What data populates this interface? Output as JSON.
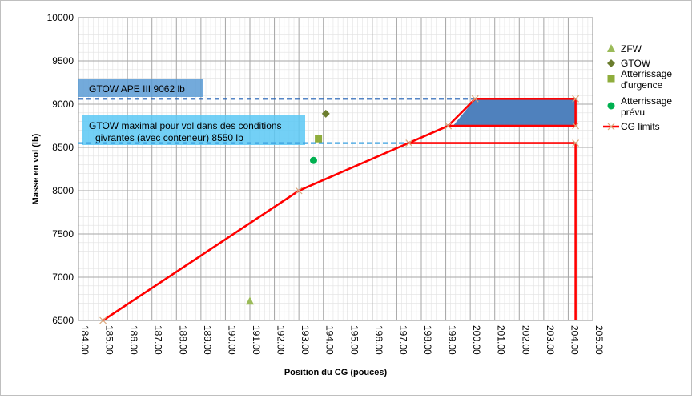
{
  "chart_data": {
    "type": "scatter",
    "title": "",
    "xlabel": "Position du CG (pouces)",
    "ylabel": "Masse en vol (lb)",
    "xlim": [
      184,
      205
    ],
    "ylim": [
      6500,
      10000
    ],
    "x_ticks": [
      "184.00",
      "185.00",
      "186.00",
      "187.00",
      "188.00",
      "189.00",
      "190.00",
      "191.00",
      "192.00",
      "193.00",
      "194.00",
      "195.00",
      "196.00",
      "197.00",
      "198.00",
      "199.00",
      "200.00",
      "201.00",
      "202.00",
      "203.00",
      "204.00",
      "205.00"
    ],
    "y_ticks": [
      "6500",
      "7000",
      "7500",
      "8000",
      "8500",
      "9000",
      "9500",
      "10000"
    ],
    "grid": true,
    "legend_position": "right",
    "series": [
      {
        "name": "ZFW",
        "marker": "triangle",
        "color": "#9bbb59",
        "points": [
          {
            "x": 191.0,
            "y": 6720
          }
        ]
      },
      {
        "name": "GTOW",
        "marker": "diamond",
        "color": "#6b7d2e",
        "points": [
          {
            "x": 194.1,
            "y": 8890
          }
        ]
      },
      {
        "name": "Atterrissage d'urgence",
        "marker": "square",
        "color": "#8fad3c",
        "points": [
          {
            "x": 193.8,
            "y": 8600
          }
        ]
      },
      {
        "name": "Atterrissage prévu",
        "marker": "circle",
        "color": "#00b050",
        "points": [
          {
            "x": 193.6,
            "y": 8350
          }
        ]
      },
      {
        "name": "CG limits",
        "marker": "line",
        "color": "#ff0000",
        "points": [
          {
            "x": 185.0,
            "y": 6500
          },
          {
            "x": 193.0,
            "y": 8000
          },
          {
            "x": 199.1,
            "y": 8750
          },
          {
            "x": 200.2,
            "y": 9062
          },
          {
            "x": 204.3,
            "y": 9062
          },
          {
            "x": 204.3,
            "y": 8750
          },
          {
            "x": 199.1,
            "y": 8750
          }
        ]
      }
    ],
    "cg_aft_limit": {
      "x": 204.3,
      "y_from": 6500,
      "y_to": 8550
    },
    "cg_8550_line": {
      "x_from": 197.5,
      "x_to": 204.3,
      "y": 8550
    },
    "shaded_envelope": [
      {
        "x": 199.3,
        "y": 8750
      },
      {
        "x": 200.2,
        "y": 9062
      },
      {
        "x": 204.3,
        "y": 9062
      },
      {
        "x": 204.3,
        "y": 8750
      }
    ],
    "reference_lines": [
      {
        "y": 9062,
        "label": "GTOW APE III 9062 lb",
        "color": "#1f5fb4",
        "x_from": 184,
        "x_to": 204.3
      },
      {
        "y": 8550,
        "label": "GTOW maximal pour vol dans des conditions givrantes (avec conteneur) 8550 lb",
        "color": "#3aa0e0",
        "x_from": 184,
        "x_to": 197.5
      }
    ]
  }
}
